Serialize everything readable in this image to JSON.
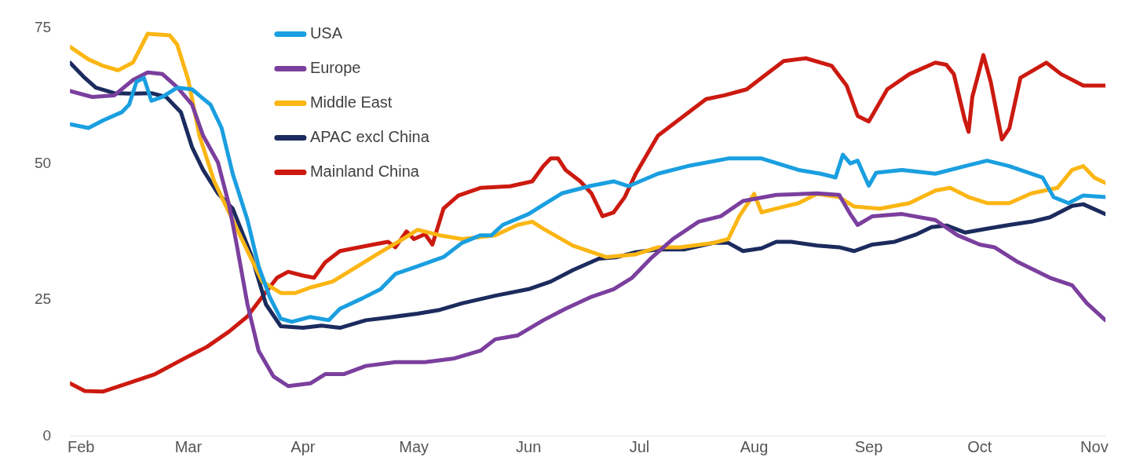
{
  "chart_data": {
    "type": "line",
    "xlim": [
      "--01-29",
      "--11-04"
    ],
    "ylim": [
      0,
      75
    ],
    "yticks": [
      0,
      25,
      50,
      75
    ],
    "xticks": [
      {
        "value": "--02-01",
        "label": "Feb"
      },
      {
        "value": "--03-01",
        "label": "Mar"
      },
      {
        "value": "--04-01",
        "label": "Apr"
      },
      {
        "value": "--05-01",
        "label": "May"
      },
      {
        "value": "--06-01",
        "label": "Jun"
      },
      {
        "value": "--07-01",
        "label": "Jul"
      },
      {
        "value": "--08-01",
        "label": "Aug"
      },
      {
        "value": "--09-01",
        "label": "Sep"
      },
      {
        "value": "--10-01",
        "label": "Oct"
      },
      {
        "value": "--11-01",
        "label": "Nov"
      }
    ],
    "grid": false,
    "legend": "top left",
    "marker": "none",
    "line_style": "solid",
    "series": [
      {
        "name": "USA",
        "color": "#1a9fe0",
        "x": [
          "--01-29",
          "--02-03",
          "--02-07",
          "--02-12",
          "--02-14",
          "--02-16",
          "--02-18",
          "--02-20",
          "--02-23",
          "--02-27",
          "--03-02",
          "--03-05",
          "--03-07",
          "--03-10",
          "--03-13",
          "--03-17",
          "--03-20",
          "--03-23",
          "--03-26",
          "--03-29",
          "--04-03",
          "--04-08",
          "--04-11",
          "--04-17",
          "--04-22",
          "--04-26",
          "--05-02",
          "--05-09",
          "--05-14",
          "--05-19",
          "--05-22",
          "--05-25",
          "--06-01",
          "--06-05",
          "--06-10",
          "--06-18",
          "--06-24",
          "--06-28",
          "--07-06",
          "--07-14",
          "--07-25",
          "--08-03",
          "--08-13",
          "--08-19",
          "--08-22",
          "--08-23",
          "--08-25",
          "--08-27",
          "--08-29",
          "--09-01",
          "--09-03",
          "--09-10",
          "--09-19",
          "--09-27",
          "--10-03",
          "--10-09",
          "--10-18",
          "--10-21",
          "--10-25",
          "--10-29",
          "--11-04"
        ],
        "values": [
          57.3,
          56.6,
          58,
          59.5,
          60.9,
          65.1,
          65.8,
          61.6,
          62.3,
          64,
          63.7,
          62,
          60.9,
          56.6,
          48.2,
          39.7,
          31.2,
          25.6,
          21.6,
          21,
          21.9,
          21.3,
          23.4,
          25.3,
          27,
          29.8,
          31.2,
          32.9,
          35.5,
          36.9,
          36.9,
          38.8,
          40.8,
          42.5,
          44.6,
          46,
          46.8,
          45.9,
          48.2,
          49.6,
          51,
          51,
          48.9,
          48.2,
          47.7,
          47.5,
          51.7,
          50.1,
          50.6,
          46,
          48.4,
          48.9,
          48.2,
          49.6,
          50.6,
          49.6,
          47.5,
          43.9,
          42.8,
          44.2,
          43.9
        ]
      },
      {
        "name": "Europe",
        "color": "#7b3f9e",
        "x": [
          "--01-29",
          "--02-04",
          "--02-10",
          "--02-15",
          "--02-19",
          "--02-23",
          "--02-27",
          "--03-02",
          "--03-05",
          "--03-09",
          "--03-12",
          "--03-14",
          "--03-17",
          "--03-20",
          "--03-24",
          "--03-28",
          "--04-03",
          "--04-07",
          "--04-12",
          "--04-18",
          "--04-26",
          "--05-04",
          "--05-12",
          "--05-19",
          "--05-23",
          "--05-29",
          "--06-05",
          "--06-11",
          "--06-18",
          "--06-24",
          "--06-29",
          "--07-04",
          "--07-10",
          "--07-17",
          "--07-23",
          "--07-29",
          "--08-07",
          "--08-18",
          "--08-24",
          "--08-27",
          "--08-29",
          "--09-02",
          "--09-10",
          "--09-19",
          "--09-25",
          "--10-01",
          "--10-05",
          "--10-11",
          "--10-20",
          "--10-26",
          "--10-30",
          "--11-04"
        ],
        "values": [
          63.4,
          62.3,
          62.6,
          65.4,
          66.8,
          66.5,
          64.1,
          60.9,
          55.2,
          50.3,
          42.5,
          35.5,
          24.2,
          15.7,
          11,
          9.2,
          9.7,
          11.4,
          11.4,
          12.9,
          13.6,
          13.6,
          14.3,
          15.7,
          17.8,
          18.5,
          21.3,
          23.4,
          25.6,
          27,
          29.1,
          32.6,
          36.2,
          39.4,
          40.4,
          43.2,
          44.3,
          44.6,
          44.3,
          40.8,
          38.8,
          40.4,
          40.8,
          39.7,
          36.9,
          35.2,
          34.7,
          32.1,
          29.1,
          27.7,
          24.4,
          21.3
        ]
      },
      {
        "name": "Middle East",
        "color": "#fbb614",
        "x": [
          "--01-29",
          "--02-03",
          "--02-07",
          "--02-11",
          "--02-15",
          "--02-17",
          "--02-19",
          "--02-25",
          "--02-27",
          "--03-01",
          "--03-04",
          "--03-08",
          "--03-12",
          "--03-17",
          "--03-21",
          "--03-26",
          "--03-30",
          "--04-03",
          "--04-09",
          "--04-15",
          "--04-22",
          "--04-28",
          "--05-02",
          "--05-08",
          "--05-14",
          "--05-23",
          "--05-29",
          "--06-02",
          "--06-05",
          "--06-13",
          "--06-22",
          "--06-30",
          "--07-06",
          "--07-12",
          "--07-21",
          "--07-25",
          "--07-28",
          "--08-01",
          "--08-03",
          "--08-07",
          "--08-13",
          "--08-18",
          "--08-24",
          "--08-28",
          "--09-04",
          "--09-12",
          "--09-19",
          "--09-23",
          "--09-28",
          "--10-03",
          "--10-09",
          "--10-15",
          "--10-22",
          "--10-26",
          "--10-29",
          "--11-01",
          "--11-04"
        ],
        "values": [
          71.5,
          69.2,
          68,
          67.2,
          68.6,
          71.2,
          73.9,
          73.6,
          71.9,
          65.4,
          55.2,
          46.8,
          41.1,
          34,
          28.4,
          26.3,
          26.3,
          27.3,
          28.4,
          30.9,
          33.8,
          36.2,
          37.9,
          36.9,
          36.2,
          36.9,
          38.8,
          39.4,
          38.1,
          35,
          32.9,
          33.4,
          34.7,
          34.7,
          35.5,
          36.2,
          40.4,
          44.5,
          41.1,
          41.8,
          42.8,
          44.5,
          43.9,
          42.2,
          41.8,
          42.8,
          45.1,
          45.6,
          43.9,
          42.8,
          42.8,
          44.6,
          45.6,
          48.9,
          49.6,
          47.5,
          46.5
        ]
      },
      {
        "name": "APAC excl China",
        "color": "#1c2b5e",
        "x": [
          "--01-29",
          "--02-02",
          "--02-05",
          "--02-10",
          "--02-15",
          "--02-20",
          "--02-24",
          "--02-28",
          "--03-02",
          "--03-05",
          "--03-09",
          "--03-13",
          "--03-18",
          "--03-22",
          "--03-26",
          "--04-01",
          "--04-06",
          "--04-11",
          "--04-18",
          "--04-24",
          "--05-02",
          "--05-08",
          "--05-14",
          "--05-23",
          "--06-01",
          "--06-07",
          "--06-13",
          "--06-20",
          "--06-25",
          "--06-30",
          "--07-06",
          "--07-13",
          "--07-21",
          "--07-25",
          "--07-29",
          "--08-03",
          "--08-07",
          "--08-11",
          "--08-18",
          "--08-24",
          "--08-28",
          "--09-02",
          "--09-08",
          "--09-14",
          "--09-18",
          "--09-22",
          "--09-27",
          "--10-03",
          "--10-09",
          "--10-15",
          "--10-20",
          "--10-26",
          "--10-29",
          "--11-04"
        ],
        "values": [
          68.6,
          65.8,
          64,
          63,
          62.9,
          63,
          62.3,
          59.5,
          53.1,
          48.9,
          44.6,
          41.8,
          33.3,
          24.2,
          20.2,
          19.9,
          20.3,
          19.9,
          21.3,
          21.8,
          22.5,
          23.2,
          24.4,
          25.8,
          27,
          28.4,
          30.5,
          32.6,
          32.9,
          33.8,
          34.3,
          34.3,
          35.5,
          35.5,
          34,
          34.5,
          35.7,
          35.7,
          35,
          34.7,
          34,
          35.2,
          35.7,
          37.1,
          38.4,
          38.7,
          37.4,
          38.1,
          38.8,
          39.4,
          40.2,
          42.3,
          42.6,
          40.8
        ]
      },
      {
        "name": "Mainland China",
        "color": "#cc1a10",
        "x": [
          "--01-29",
          "--02-02",
          "--02-07",
          "--02-15",
          "--02-21",
          "--02-29",
          "--03-06",
          "--03-12",
          "--03-17",
          "--03-21",
          "--03-25",
          "--03-28",
          "--04-01",
          "--04-04",
          "--04-07",
          "--04-11",
          "--04-20",
          "--04-24",
          "--04-26",
          "--04-29",
          "--05-01",
          "--05-04",
          "--05-06",
          "--05-09",
          "--05-13",
          "--05-19",
          "--05-27",
          "--06-02",
          "--06-05",
          "--06-07",
          "--06-09",
          "--06-11",
          "--06-15",
          "--06-18",
          "--06-21",
          "--06-24",
          "--06-27",
          "--06-30",
          "--07-06",
          "--07-12",
          "--07-19",
          "--07-24",
          "--07-30",
          "--08-03",
          "--08-09",
          "--08-15",
          "--08-22",
          "--08-26",
          "--08-29",
          "--09-01",
          "--09-06",
          "--09-12",
          "--09-19",
          "--09-22",
          "--09-24",
          "--09-27",
          "--09-28",
          "--09-29",
          "--10-02",
          "--10-04",
          "--10-07",
          "--10-09",
          "--10-12",
          "--10-19",
          "--10-23",
          "--10-29",
          "--11-04"
        ],
        "values": [
          9.7,
          8.3,
          8.2,
          10,
          11.4,
          14.3,
          16.4,
          19.2,
          22,
          25.6,
          29.1,
          30.2,
          29.5,
          29.1,
          31.9,
          34,
          35.2,
          35.7,
          34.7,
          37.6,
          36.2,
          37.1,
          35.2,
          41.8,
          44.2,
          45.6,
          45.9,
          46.8,
          49.6,
          51,
          51,
          48.9,
          46.8,
          44.6,
          40.4,
          41.1,
          43.9,
          48.2,
          55.2,
          58.3,
          61.9,
          62.6,
          63.7,
          65.8,
          68.9,
          69.4,
          68,
          64.4,
          58.8,
          57.8,
          63.7,
          66.5,
          68.6,
          68.2,
          66.5,
          58,
          55.9,
          62.3,
          70,
          65,
          54.5,
          56.5,
          65.8,
          68.6,
          66.5,
          64.4,
          64.4
        ]
      }
    ]
  }
}
